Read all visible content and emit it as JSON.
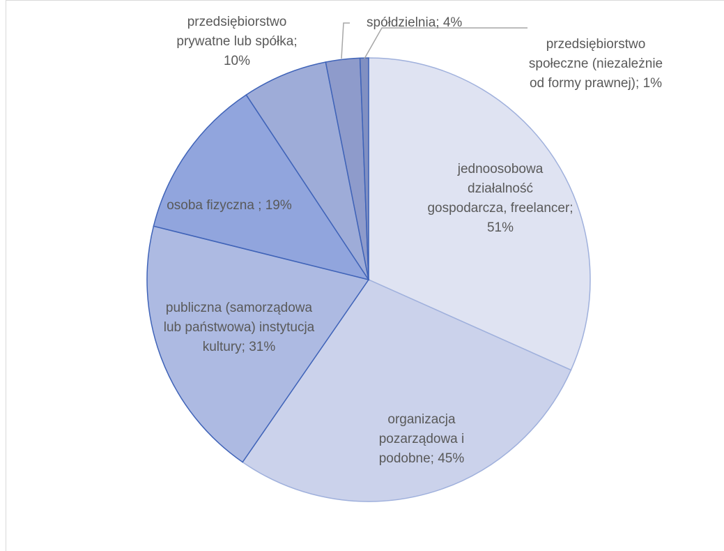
{
  "chart_data": {
    "type": "pie",
    "values": [
      51,
      45,
      31,
      19,
      10,
      4,
      1
    ],
    "value_labels": [
      "jednoosobowa działalność gospodarcza, freelancer; 51%",
      "organizacja pozarządowa i podobne; 45%",
      "publiczna (samorządowa lub państwowa) instytucja kultury; 31%",
      "osoba fizyczna ; 19%",
      "przedsiębiorstwo prywatne lub spółka; 10%",
      "spółdzielnia; 4%",
      "przedsiębiorstwo społeczne (niezależnie od formy prawnej); 1%"
    ],
    "colors": [
      "#dfe3f2",
      "#cbd2eb",
      "#adbae2",
      "#91a5dd",
      "#9eacd8",
      "#8e9bcb",
      "#8190c2"
    ]
  }
}
